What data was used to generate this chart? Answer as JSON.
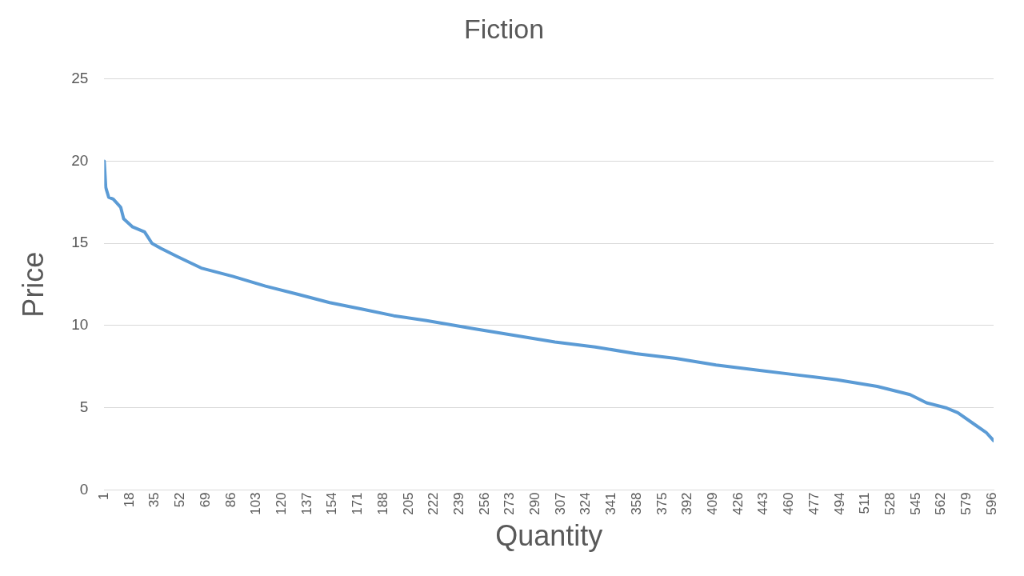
{
  "chart_data": {
    "type": "line",
    "title": "Fiction",
    "xlabel": "Quantity",
    "ylabel": "Price",
    "x": [
      1,
      2,
      4,
      7,
      12,
      14,
      20,
      28,
      33,
      39,
      50,
      66,
      87,
      109,
      131,
      152,
      174,
      195,
      217,
      249,
      276,
      303,
      330,
      357,
      384,
      411,
      438,
      465,
      492,
      519,
      541,
      552,
      565,
      573,
      584,
      592,
      597
    ],
    "series": [
      {
        "color": "#5b9bd5",
        "values": [
          20.0,
          18.4,
          17.8,
          17.7,
          17.2,
          16.5,
          16.0,
          15.7,
          15.0,
          14.7,
          14.2,
          13.5,
          13.0,
          12.4,
          11.9,
          11.4,
          11.0,
          10.6,
          10.3,
          9.8,
          9.4,
          9.0,
          8.7,
          8.3,
          8.0,
          7.6,
          7.3,
          7.0,
          6.7,
          6.3,
          5.8,
          5.3,
          5.0,
          4.7,
          4.0,
          3.5,
          3.0
        ]
      }
    ],
    "xlim": [
      1,
      597
    ],
    "xticks": [
      1,
      18,
      35,
      52,
      69,
      86,
      103,
      120,
      137,
      154,
      171,
      188,
      205,
      222,
      239,
      256,
      273,
      290,
      307,
      324,
      341,
      358,
      375,
      392,
      409,
      426,
      443,
      460,
      477,
      494,
      511,
      528,
      545,
      562,
      579,
      596
    ],
    "ylim": [
      0,
      25
    ],
    "yticks": [
      0,
      5,
      10,
      15,
      20,
      25
    ],
    "grid": "y",
    "marker": "none",
    "line_style": "solid",
    "legend": false
  }
}
